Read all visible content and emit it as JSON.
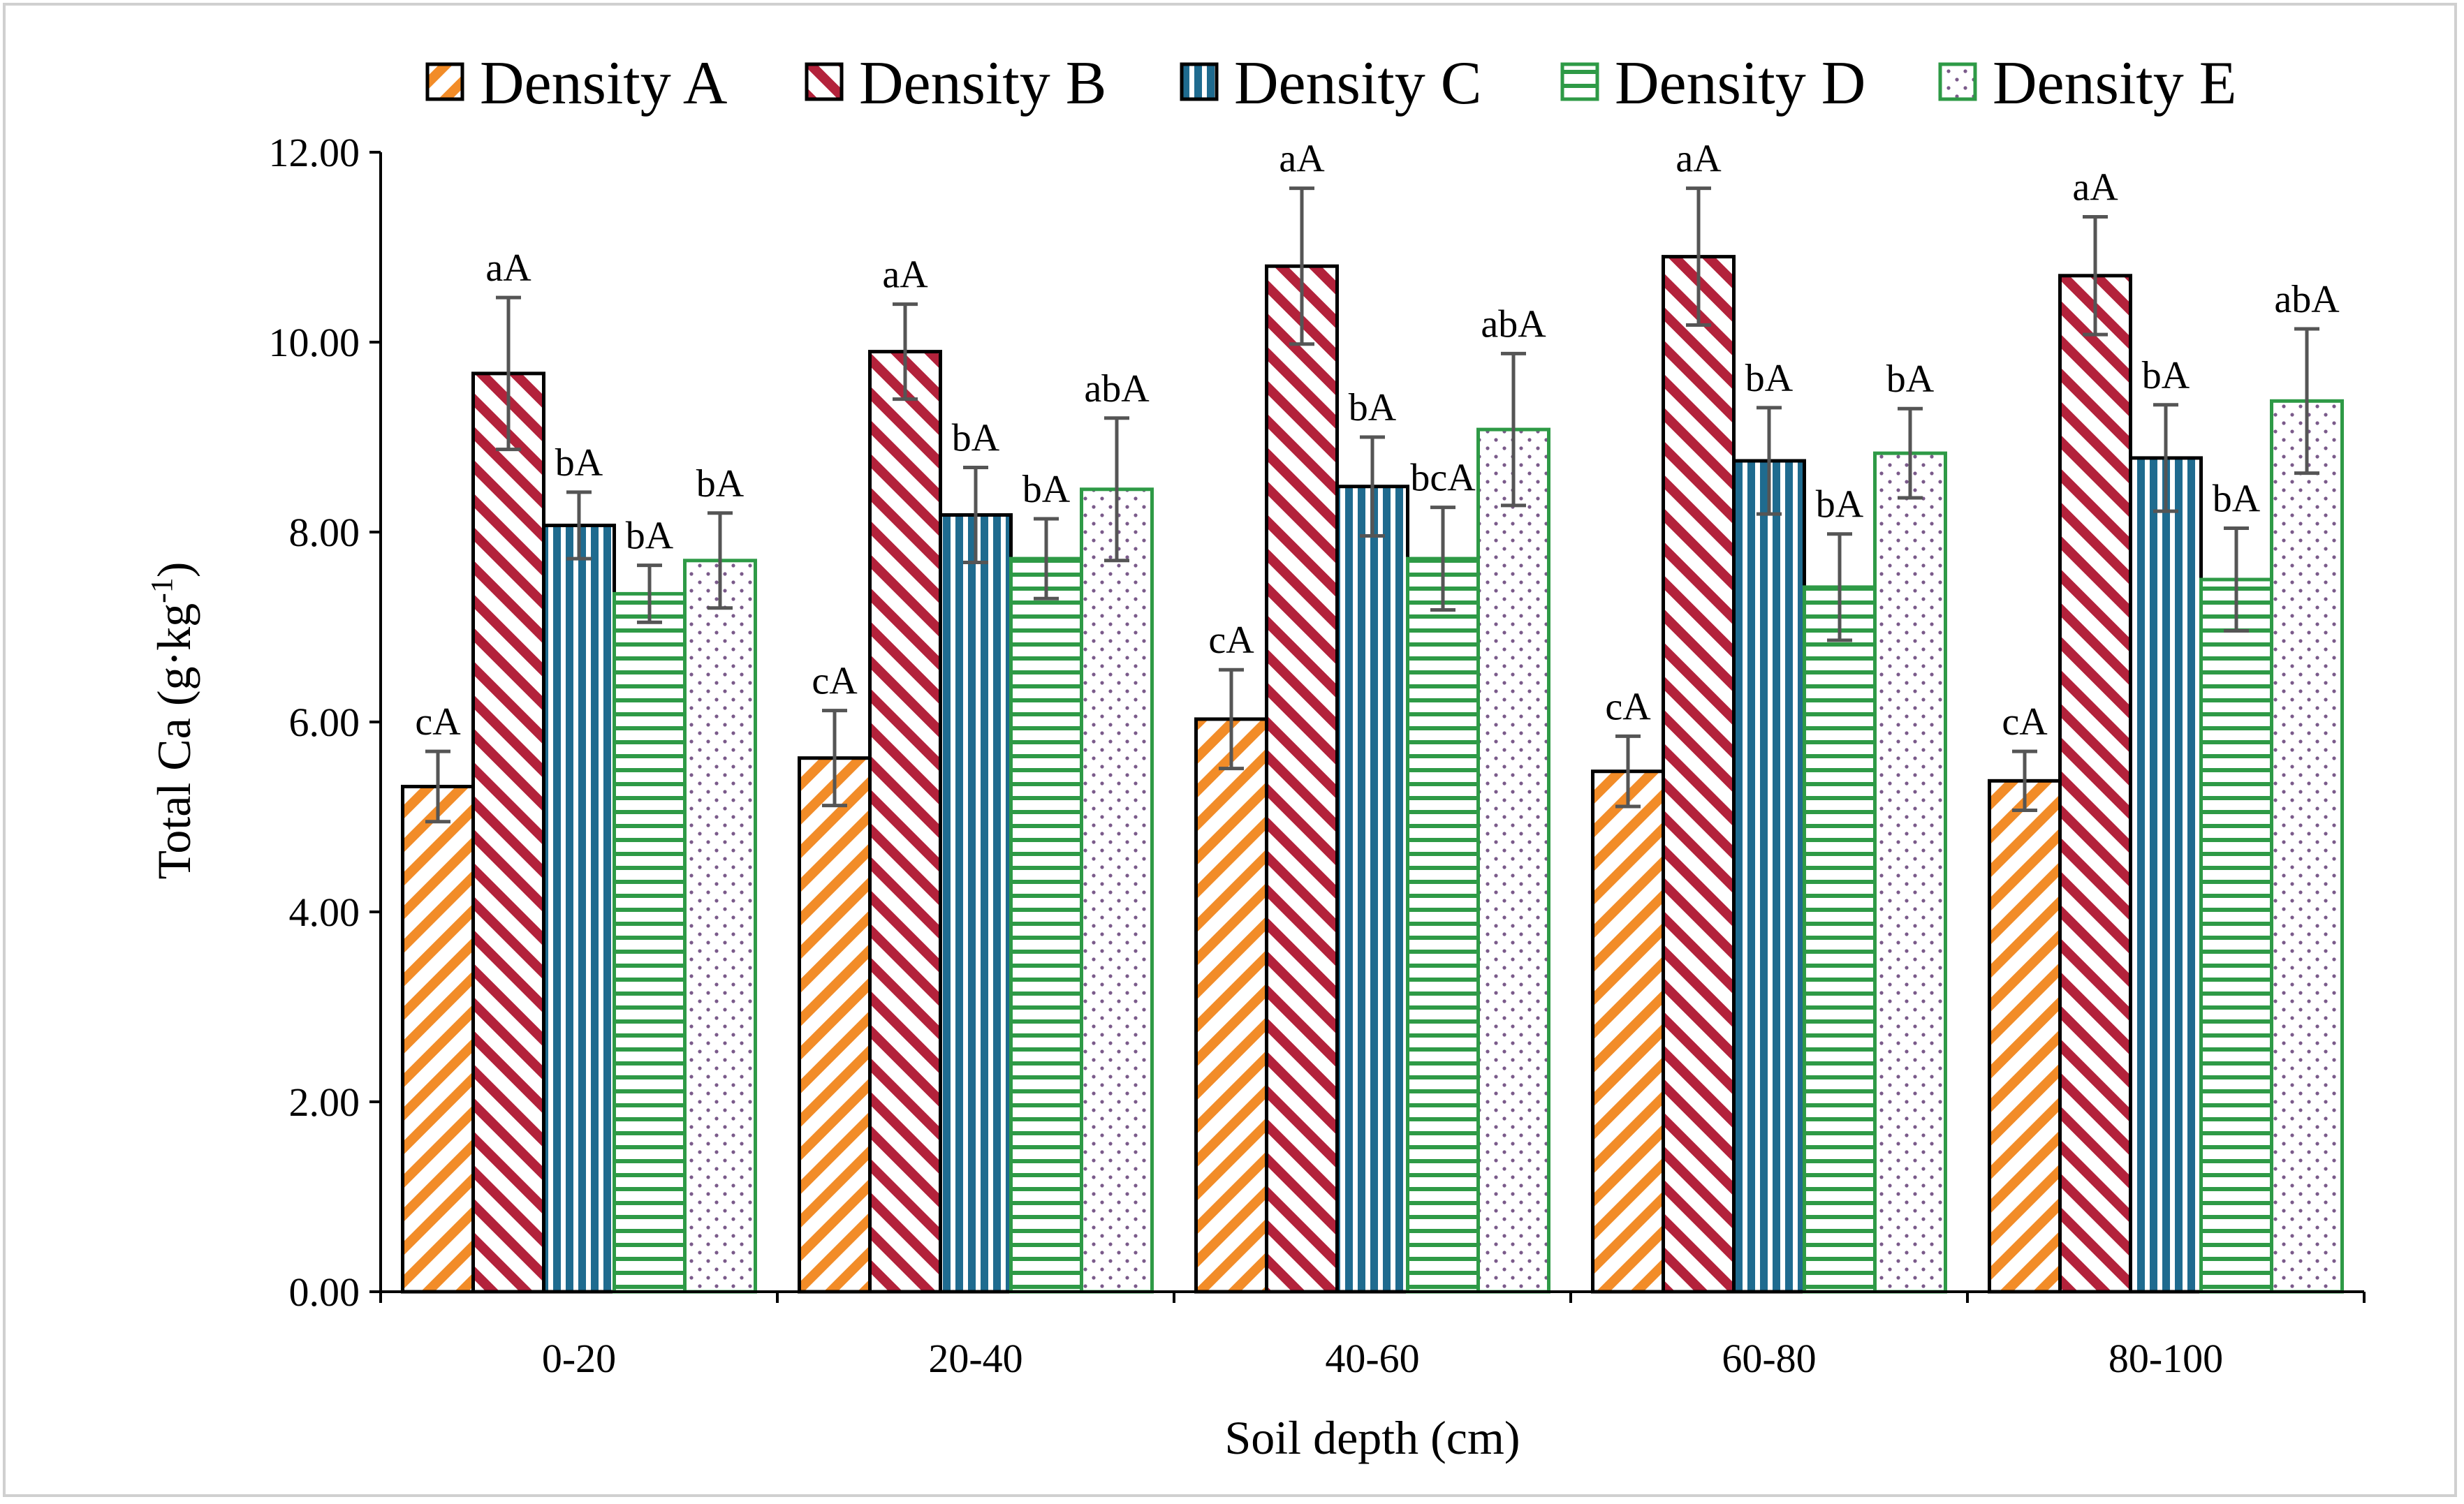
{
  "chart_data": {
    "type": "bar",
    "xlabel": "Soil depth (cm)",
    "ylabel_main": "Total Ca (g·kg",
    "ylabel_sup": "-1",
    "ylabel_end": ")",
    "ylim": [
      0,
      12
    ],
    "yticks": [
      "0.00",
      "2.00",
      "4.00",
      "6.00",
      "8.00",
      "10.00",
      "12.00"
    ],
    "categories": [
      "0-20",
      "20-40",
      "40-60",
      "60-80",
      "80-100"
    ],
    "legend_position": "top",
    "series": [
      {
        "name": "Density A",
        "pattern": "diag-right",
        "color": "#f28c28",
        "values": [
          5.32,
          5.62,
          6.03,
          5.48,
          5.38
        ],
        "errors": [
          0.37,
          0.5,
          0.52,
          0.37,
          0.31
        ],
        "labels": [
          "cA",
          "cA",
          "cA",
          "cA",
          "cA"
        ]
      },
      {
        "name": "Density B",
        "pattern": "diag-left",
        "color": "#b3223b",
        "values": [
          9.67,
          9.9,
          10.8,
          10.9,
          10.7
        ],
        "errors": [
          0.8,
          0.5,
          0.82,
          0.72,
          0.62
        ],
        "labels": [
          "aA",
          "aA",
          "aA",
          "aA",
          "aA"
        ]
      },
      {
        "name": "Density C",
        "pattern": "vertical",
        "color": "#1f6b8f",
        "values": [
          8.07,
          8.18,
          8.48,
          8.75,
          8.78
        ],
        "errors": [
          0.35,
          0.5,
          0.52,
          0.56,
          0.56
        ],
        "labels": [
          "bA",
          "bA",
          "bA",
          "bA",
          "bA"
        ]
      },
      {
        "name": "Density D",
        "pattern": "horizontal",
        "color": "#2e9a46",
        "values": [
          7.35,
          7.72,
          7.72,
          7.42,
          7.5
        ],
        "errors": [
          0.3,
          0.42,
          0.54,
          0.56,
          0.54
        ],
        "labels": [
          "bA",
          "bA",
          "bcA",
          "bA",
          "bA"
        ]
      },
      {
        "name": "Density E",
        "pattern": "dots",
        "color": "#7a5a8a",
        "values": [
          7.7,
          8.45,
          9.08,
          8.83,
          9.38
        ],
        "errors": [
          0.5,
          0.75,
          0.8,
          0.47,
          0.76
        ],
        "labels": [
          "bA",
          "abA",
          "abA",
          "bA",
          "abA"
        ]
      }
    ]
  }
}
